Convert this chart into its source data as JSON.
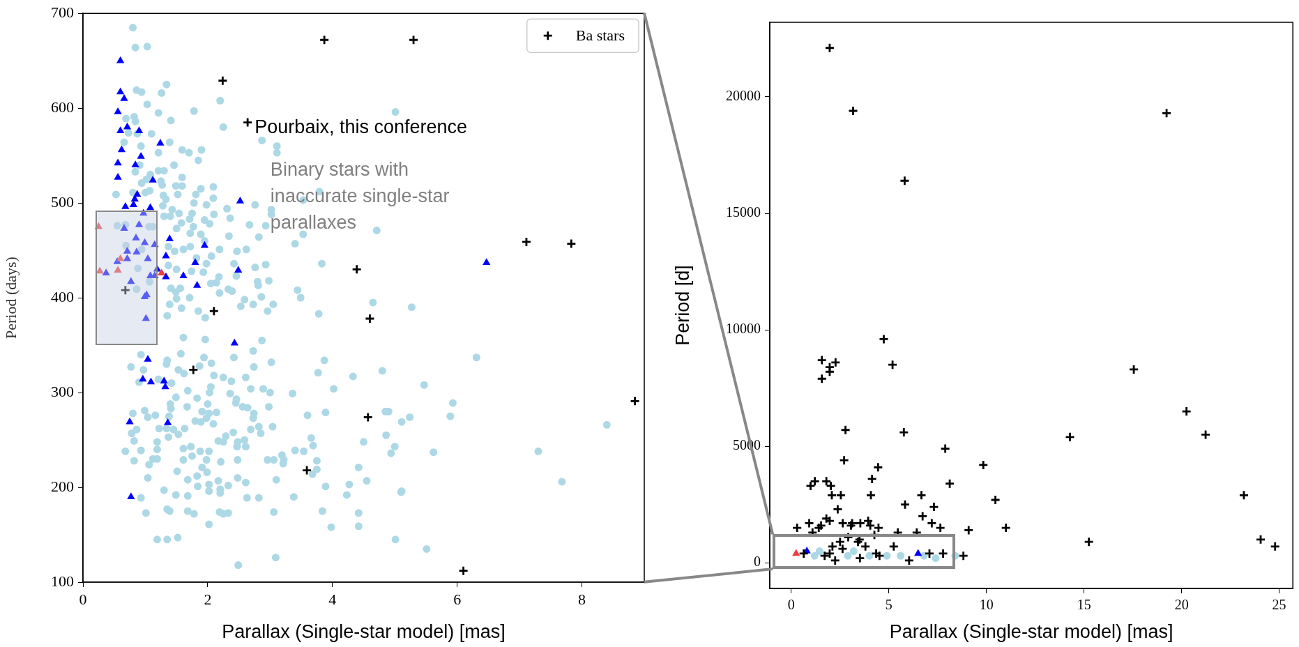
{
  "chart_data": [
    {
      "type": "scatter",
      "xlabel": "Parallax (Single-star model) [mas]",
      "ylabel": "Period (days)",
      "xlim": [
        0,
        9
      ],
      "ylim": [
        100,
        700
      ],
      "xticks": [
        0,
        2,
        4,
        6,
        8
      ],
      "yticks": [
        100,
        200,
        300,
        400,
        500,
        600,
        700
      ],
      "grid": false,
      "legend": "top right",
      "annotations": [
        "Pourbaix, this conference",
        "Binary stars with inaccurate single-star parallaxes"
      ],
      "series": [
        {
          "color": "#add8e6",
          "marker": "circle",
          "x": [
            0.8,
            0.84,
            1.03,
            1.34,
            1.26,
            0.86,
            0.94,
            1.03,
            1.21,
            0.82,
            0.69,
            0.84,
            1.41,
            1.78,
            2.2,
            2.25,
            1.1,
            0.87,
            0.73,
            0.66,
            0.93,
            1.39,
            1.21,
            1.59,
            1.7,
            1.9,
            1.85,
            1.46,
            2.87,
            3.11,
            3.11,
            5.01,
            0.91,
            0.84,
            1.21,
            1.3,
            1.08,
            1.59,
            1.25,
            0.94,
            1.02,
            1.27,
            1.49,
            1.59,
            1.89,
            2.09,
            0.53,
            0.8,
            1.0,
            1.07,
            1.29,
            1.33,
            1.52,
            1.81,
            2.09,
            1.78,
            1.98,
            2.76,
            2.31,
            3.02,
            3.02,
            3.79,
            3.53,
            1.43,
            1.28,
            1.54,
            1.75,
            1.3,
            1.4,
            2.36,
            1.71,
            1.95,
            2.03,
            2.1,
            2.67,
            2.93,
            0.55,
            0.68,
            1.12,
            1.06,
            1.5,
            1.77,
            1.58,
            1.72,
            1.89,
            1.95,
            2.34,
            2.82,
            3.53,
            3.4,
            4.71,
            0.69,
            0.94,
            0.88,
            1.37,
            1.61,
            2.19,
            1.72,
            2.47,
            2.62,
            1.82,
            1.47,
            2.06,
            1.98,
            2.42,
            2.76,
            2.93,
            3.83,
            1.37,
            1.5,
            1.74,
            1.93,
            2.18,
            2.46,
            2.05,
            2.14,
            2.8,
            2.98,
            2.81,
            1.41,
            1.56,
            2.33,
            2.39,
            2.19,
            3.44,
            3.49,
            2.86,
            0.86,
            1.07,
            2.59,
            2.73,
            2.96,
            3.05,
            2.53,
            4.65,
            5.27,
            1.85,
            3.78,
            1.58,
            1.39,
            1.71,
            1.49,
            1.5,
            1.35,
            1.96,
            1.61,
            1.96,
            2.87,
            1.57,
            2.73,
            2.42,
            1.94,
            2.06,
            1.35,
            1.34,
            0.93,
            0.77,
            0.97,
            1.53,
            1.62,
            1.87,
            2.1,
            2.25,
            2.38,
            2.61,
            2.74,
            3.02,
            3.87,
            3.77,
            4.33,
            4.8,
            4.02,
            3.36,
            3.0,
            2.89,
            2.69,
            2.36,
            2.03,
            2.05,
            1.68,
            1.42,
            1.21,
            0.9,
            1.49,
            1.83,
            2.0,
            2.46,
            2.45,
            2.56,
            2.64,
            2.98,
            1.67,
            1.4,
            1.41,
            0.8,
            0.99,
            1.04,
            1.16,
            1.38,
            1.91,
            2.02,
            2.14,
            1.98,
            1.8,
            1.89,
            2.09,
            2.74,
            2.73,
            2.82,
            3.04,
            2.85,
            2.69,
            2.41,
            2.29,
            2.17,
            2.25,
            2.48,
            2.59,
            2.61,
            2.47,
            2.02,
            1.88,
            1.73,
            1.61,
            1.75,
            1.61,
            1.98,
            2.21,
            2.48,
            1.91,
            1.99,
            1.83,
            1.68,
            1.51,
            1.06,
            1.12,
            1.19,
            1.19,
            1.19,
            0.93,
            0.68,
            0.82,
            1.04,
            0.82,
            0.78,
            0.86,
            1.22,
            1.34,
            1.45,
            1.53,
            1.37,
            1.63,
            1.84,
            2.02,
            2.02,
            2.2,
            2.2,
            2.33,
            2.48,
            2.61,
            2.17,
            3.1,
            3.66,
            3.69,
            3.75,
            3.75,
            3.68,
            3.4,
            3.54,
            3.6,
            3.89,
            3.19,
            3.21,
            3.22,
            3.06,
            2.96,
            3.89,
            4.27,
            4.23,
            4.42,
            4.55,
            4.5,
            4.86,
            4.85,
            4.9,
            5.11,
            5.24,
            5.0,
            4.94,
            5.11,
            3.38,
            2.63,
            2.82,
            1.68,
            1.49,
            1.3,
            0.93,
            1.01,
            1.35,
            1.39,
            1.68,
            1.78,
            2.19,
            2.25,
            2.33,
            3.06,
            3.84,
            4.42,
            4.42,
            3.98,
            2.02,
            1.19,
            1.35,
            1.52,
            3.09,
            2.49,
            5.01,
            6.31,
            5.47,
            5.93,
            5.89,
            5.62,
            5.1,
            5.51,
            7.3,
            7.68,
            8.4
          ],
          "values": [
            685,
            664,
            665,
            625,
            616,
            619,
            617,
            604,
            595,
            591,
            589,
            586,
            587,
            597,
            608,
            580,
            573,
            573,
            574,
            564,
            560,
            564,
            553,
            556,
            553,
            556,
            545,
            540,
            566,
            560,
            553,
            596,
            540,
            533,
            534,
            534,
            530,
            527,
            523,
            521,
            525,
            519,
            518,
            518,
            515,
            517,
            509,
            511,
            511,
            513,
            508,
            504,
            509,
            509,
            505,
            500,
            498,
            498,
            494,
            493,
            488,
            512,
            503,
            493,
            497,
            489,
            489,
            486,
            486,
            484,
            483,
            482,
            478,
            488,
            477,
            476,
            476,
            477,
            475,
            475,
            473,
            475,
            479,
            468,
            467,
            460,
            465,
            464,
            467,
            457,
            471,
            455,
            451,
            431,
            454,
            451,
            451,
            454,
            449,
            451,
            442,
            449,
            444,
            436,
            436,
            432,
            435,
            436,
            434,
            430,
            428,
            427,
            422,
            423,
            415,
            416,
            417,
            418,
            413,
            410,
            410,
            409,
            407,
            405,
            408,
            400,
            401,
            409,
            417,
            398,
            393,
            386,
            393,
            391,
            395,
            390,
            386,
            383,
            389,
            393,
            400,
            406,
            399,
            381,
            379,
            358,
            356,
            355,
            341,
            344,
            337,
            337,
            331,
            334,
            330,
            340,
            327,
            324,
            324,
            320,
            328,
            318,
            316,
            312,
            316,
            327,
            332,
            334,
            321,
            317,
            323,
            304,
            299,
            300,
            304,
            304,
            299,
            300,
            306,
            302,
            310,
            314,
            311,
            295,
            294,
            288,
            293,
            289,
            285,
            284,
            285,
            285,
            288,
            283,
            278,
            281,
            274,
            276,
            275,
            280,
            278,
            279,
            273,
            270,
            269,
            267,
            278,
            273,
            264,
            264,
            257,
            261,
            258,
            254,
            249,
            248,
            248,
            250,
            243,
            243,
            238,
            238,
            243,
            241,
            233,
            229,
            229,
            227,
            229,
            221,
            216,
            212,
            208,
            217,
            224,
            230,
            230,
            240,
            248,
            239,
            238,
            228,
            210,
            249,
            257,
            261,
            262,
            262,
            261,
            256,
            253,
            262,
            201,
            203,
            196,
            198,
            194,
            202,
            210,
            205,
            207,
            208,
            252,
            244,
            228,
            219,
            214,
            239,
            238,
            276,
            279,
            234,
            225,
            229,
            229,
            229,
            201,
            203,
            192,
            221,
            207,
            248,
            255,
            280,
            280,
            269,
            274,
            243,
            236,
            196,
            190,
            189,
            189,
            191,
            192,
            197,
            189,
            173,
            177,
            175,
            175,
            172,
            174,
            172,
            173,
            174,
            175,
            173,
            159,
            158,
            161,
            145,
            145,
            147,
            126,
            118,
            145,
            337,
            308,
            289,
            275,
            237,
            195,
            135,
            238,
            206,
            266
          ]
        },
        {
          "color": "#0000ff",
          "marker": "triangle",
          "x": [
            0.6,
            0.6,
            0.66,
            0.56,
            0.71,
            0.6,
            0.9,
            1.24,
            0.62,
            0.93,
            0.56,
            0.84,
            0.56,
            1.12,
            0.87,
            0.83,
            0.81,
            0.68,
            1.08,
            0.97,
            0.9,
            0.66,
            1.39,
            0.85,
            0.99,
            1.15,
            1.95,
            0.71,
            0.86,
            0.71,
            1.04,
            1.33,
            0.55,
            1.8,
            2.49,
            1.19,
            0.37,
            1.08,
            1.15,
            1.33,
            1.61,
            0.77,
            1.83,
            1.02,
            0.99,
            2.52,
            1.01,
            2.43,
            1.04,
            0.96,
            1.09,
            1.3,
            1.32,
            0.75,
            1.36,
            0.77,
            6.47
          ],
          "values": [
            650,
            617,
            610,
            596,
            580,
            576,
            576,
            563,
            556,
            549,
            542,
            540,
            527,
            524,
            509,
            504,
            498,
            496,
            495,
            489,
            477,
            473,
            462,
            463,
            458,
            456,
            455,
            449,
            448,
            441,
            441,
            444,
            438,
            437,
            429,
            430,
            426,
            423,
            423,
            422,
            423,
            417,
            413,
            403,
            401,
            502,
            378,
            352,
            335,
            314,
            311,
            312,
            306,
            269,
            268,
            190,
            437
          ]
        },
        {
          "color": "#f03c3c",
          "marker": "triangle",
          "x": [
            0.25,
            0.6,
            0.27,
            0.56,
            1.26
          ],
          "values": [
            475,
            441,
            428,
            429,
            426
          ]
        },
        {
          "name": "Ba stars",
          "color": "#000000",
          "marker": "cross",
          "x": [
            3.87,
            5.3,
            2.24,
            2.64,
            4.39,
            0.68,
            2.1,
            4.6,
            1.77,
            4.57,
            3.59,
            7.11,
            7.83,
            8.85,
            6.1
          ],
          "values": [
            672,
            672,
            629,
            585,
            430,
            408,
            386,
            378,
            324,
            274,
            218,
            459,
            457,
            291,
            112
          ]
        }
      ]
    },
    {
      "type": "scatter",
      "xlabel": "Parallax (Single-star model) [mas]",
      "ylabel": "Period [d]",
      "xlim": [
        -1.1,
        25.7
      ],
      "ylim": [
        -1100,
        23200
      ],
      "xticks": [
        0,
        5,
        10,
        15,
        20,
        25
      ],
      "yticks": [
        0,
        5000,
        10000,
        15000,
        20000
      ],
      "grid": false,
      "series": [
        {
          "color": "#add8e6",
          "marker": "circle",
          "x": [
            1.2,
            1.45,
            2.9,
            3.2,
            4.0,
            4.9,
            5.6,
            6.8,
            7.4,
            8.4
          ],
          "values": [
            300,
            500,
            300,
            500,
            300,
            300,
            300,
            300,
            200,
            300
          ]
        },
        {
          "color": "#0000ff",
          "marker": "triangle",
          "x": [
            0.8,
            6.5
          ],
          "values": [
            500,
            400
          ]
        },
        {
          "color": "#f03c3c",
          "marker": "triangle",
          "x": [
            0.25
          ],
          "values": [
            400
          ]
        },
        {
          "color": "#000000",
          "marker": "cross",
          "x": [
            1.97,
            3.17,
            5.81,
            19.23,
            4.74,
            5.19,
            1.57,
            2.27,
            1.97,
            1.97,
            1.57,
            17.55,
            20.25,
            21.23,
            14.28,
            2.78,
            5.77,
            2.71,
            7.89,
            4.45,
            9.84,
            4.14,
            8.12,
            0.99,
            1.21,
            1.8,
            2.03,
            2.08,
            2.54,
            4.08,
            6.67,
            10.46,
            23.19,
            5.83,
            7.31,
            2.38,
            6.73,
            1.8,
            1.97,
            2.64,
            3.12,
            3.54,
            3.94,
            4.05,
            7.2,
            7.64,
            11.0,
            0.92,
            1.53,
            0.3,
            1.41,
            3.06,
            4.47,
            9.09,
            15.25,
            24.05,
            24.79,
            2.92,
            3.5,
            3.42,
            2.5,
            2.11,
            2.63,
            3.8,
            5.25,
            1.09,
            4.26,
            5.46,
            6.43,
            7.08,
            7.78,
            8.82,
            6.04,
            3.52,
            2.25,
            1.97,
            1.71,
            0.64,
            4.35,
            4.52
          ],
          "values": [
            22100,
            19400,
            16400,
            19300,
            9600,
            8500,
            8700,
            8600,
            8400,
            8200,
            7900,
            8300,
            6500,
            5500,
            5400,
            5700,
            5600,
            4400,
            4900,
            4100,
            4200,
            3600,
            3400,
            3300,
            3500,
            3500,
            3300,
            2900,
            2900,
            2900,
            2900,
            2700,
            2900,
            2500,
            2400,
            2300,
            2000,
            1900,
            1800,
            1700,
            1700,
            1700,
            1800,
            1600,
            1700,
            1500,
            1500,
            1700,
            1600,
            1500,
            1500,
            1600,
            1500,
            1400,
            900,
            1000,
            700,
            1100,
            1000,
            900,
            900,
            700,
            600,
            700,
            700,
            1300,
            1200,
            1300,
            1300,
            400,
            400,
            300,
            100,
            200,
            100,
            400,
            300,
            400,
            400,
            300
          ]
        }
      ]
    }
  ]
}
